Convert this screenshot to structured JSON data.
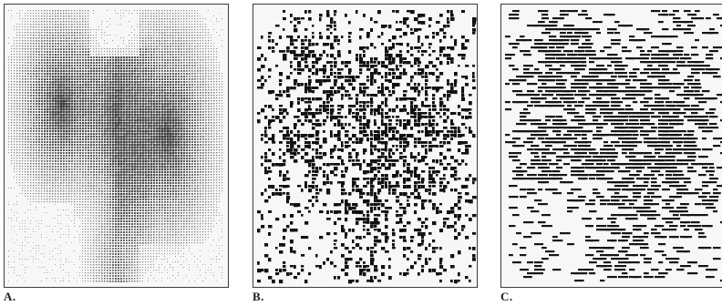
{
  "figure": {
    "panels": [
      {
        "label": "A.",
        "style": "dense halftone",
        "ink": "#2b2b2b"
      },
      {
        "label": "B.",
        "style": "sparse clustered dots",
        "ink": "#111111"
      },
      {
        "label": "C.",
        "style": "sparse line-dithered dots",
        "ink": "#151515"
      }
    ]
  }
}
